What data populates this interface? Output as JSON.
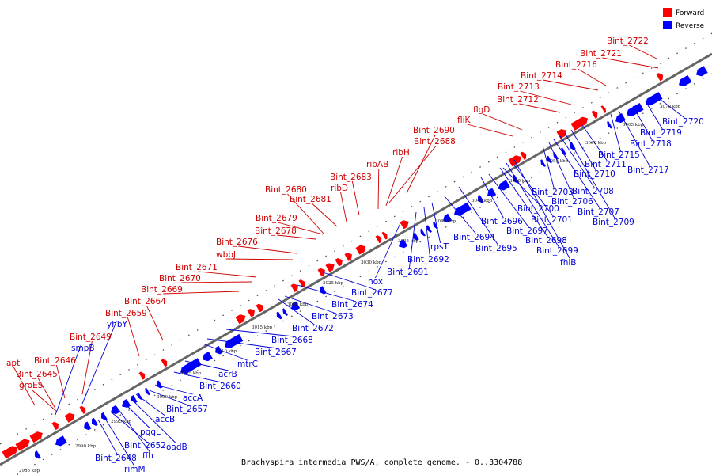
{
  "title": "Brachyspira intermedia PWS/A, complete genome. - 0..3304788",
  "legend": {
    "forward_label": "Forward",
    "reverse_label": "Reverse",
    "forward_color": "#ff0000",
    "reverse_color": "#0000ff"
  },
  "colors": {
    "forward_gene": "#ff0000",
    "reverse_gene": "#0000ff",
    "forward_label": "#d00000",
    "reverse_label": "#0000d8",
    "backbone": "#888888",
    "tick_mark": "#000000"
  },
  "tick_labels": [
    "2985 kbp",
    "2990 kbp",
    "2995 kbp",
    "3000 kbp",
    "3005 kbp",
    "3010 kbp",
    "3015 kbp",
    "3020 kbp",
    "3025 kbp",
    "3030 kbp",
    "3035 kbp",
    "3040 kbp",
    "3045 kbp",
    "3050 kbp",
    "3055 kbp",
    "3060 kbp",
    "3065 kbp",
    "3070 kbp"
  ],
  "forward_genes": [
    "apt",
    "Bint_2645",
    "groES",
    "Bint_2646",
    "Bint_2649",
    "Bint_2659",
    "Bint_2664",
    "Bint_2669",
    "Bint_2670",
    "Bint_2671",
    "wbbJ",
    "Bint_2676",
    "Bint_2678",
    "Bint_2679",
    "Bint_2681",
    "Bint_2680",
    "ribD",
    "Bint_2683",
    "ribAB",
    "ribH",
    "Bint_2688",
    "Bint_2690",
    "fliK",
    "flgD",
    "Bint_2712",
    "Bint_2713",
    "Bint_2714",
    "Bint_2716",
    "Bint_2721",
    "Bint_2722"
  ],
  "reverse_genes": [
    "smpB",
    "yhbY",
    "Bint_2648",
    "rimM",
    "Bint_2652",
    "ffh",
    "pqqL",
    "oadB",
    "accB",
    "Bint_2657",
    "accA",
    "Bint_2660",
    "acrB",
    "mtrC",
    "Bint_2667",
    "Bint_2668",
    "Bint_2672",
    "Bint_2673",
    "Bint_2674",
    "Bint_2677",
    "nox",
    "Bint_2691",
    "Bint_2692",
    "rpsT",
    "Bint_2694",
    "Bint_2695",
    "Bint_2696",
    "Bint_2697",
    "Bint_2698",
    "Bint_2699",
    "fhlB",
    "Bint_2700",
    "Bint_2701",
    "Bint_2703",
    "Bint_2706",
    "Bint_2707",
    "Bint_2708",
    "Bint_2709",
    "Bint_2710",
    "Bint_2711",
    "Bint_2715",
    "Bint_2717",
    "Bint_2718",
    "Bint_2719",
    "Bint_2720"
  ]
}
